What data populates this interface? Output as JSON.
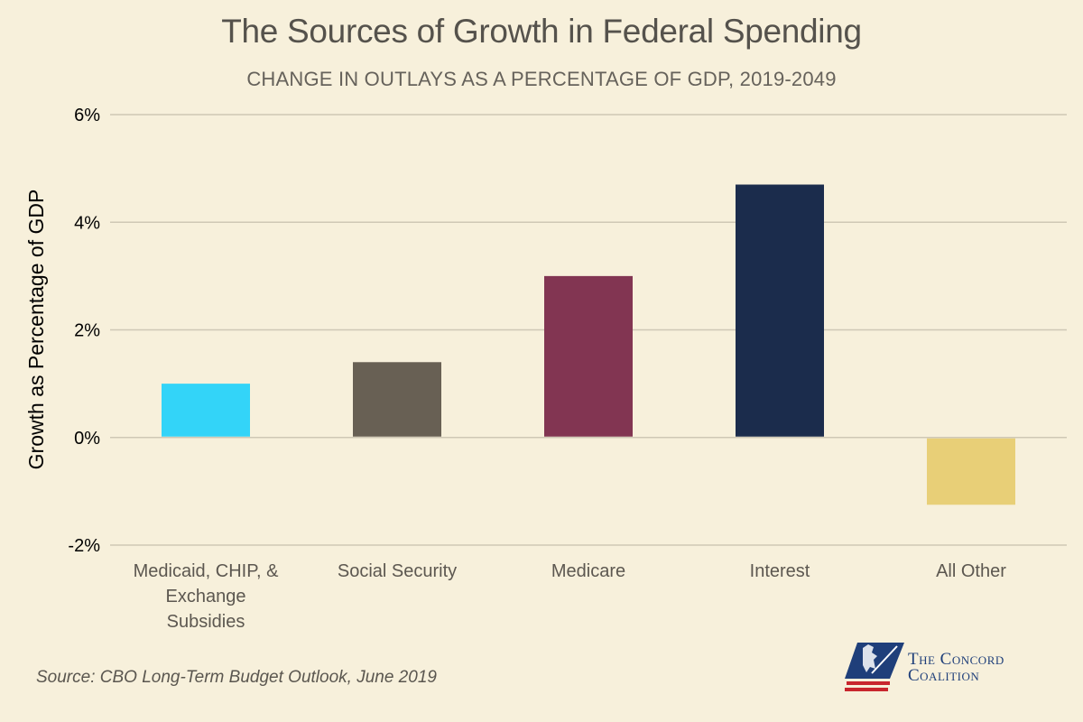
{
  "title": "The Sources of Growth in Federal Spending",
  "subtitle": "CHANGE IN OUTLAYS AS A PERCENTAGE OF GDP, 2019-2049",
  "source": "Source: CBO Long-Term Budget Outlook, June 2019",
  "logo": {
    "line1": "The Concord",
    "line2": "Coalition"
  },
  "chart_data": {
    "type": "bar",
    "categories": [
      [
        "Medicaid, CHIP, &",
        "Exchange",
        "Subsidies"
      ],
      [
        "Social Security"
      ],
      [
        "Medicare"
      ],
      [
        "Interest"
      ],
      [
        "All Other"
      ]
    ],
    "values": [
      1.0,
      1.4,
      3.0,
      4.7,
      -1.25
    ],
    "colors": [
      "#33d4f8",
      "#686054",
      "#823552",
      "#1b2c4c",
      "#e8cf77"
    ],
    "ylabel": "Growth as Percentage of GDP",
    "yticks": [
      6,
      4,
      2,
      0,
      -2
    ],
    "ytick_labels": [
      "6%",
      "4%",
      "2%",
      "0%",
      "-2%"
    ],
    "ylim": [
      -2,
      6
    ],
    "grid": true
  }
}
